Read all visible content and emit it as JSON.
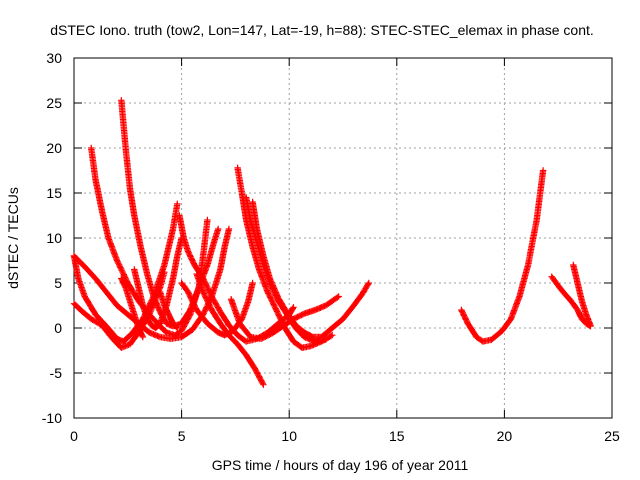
{
  "chart_data": {
    "type": "scatter",
    "title": "dSTEC Iono. truth (tow2, Lon=147, Lat=-19, h=88): STEC-STEC_elemax in phase cont.",
    "xlabel": "GPS time / hours of day 196 of year 2011",
    "ylabel": "dSTEC  / TECUs",
    "xlim": [
      0,
      25
    ],
    "ylim": [
      -10,
      30
    ],
    "xticks": [
      "0",
      "5",
      "10",
      "15",
      "20",
      "25"
    ],
    "yticks": [
      "-10",
      "-5",
      "0",
      "5",
      "10",
      "15",
      "20",
      "25",
      "30"
    ],
    "grid": true,
    "marker": "+",
    "series_color": "#ff0000",
    "series": [
      {
        "points": [
          [
            0.0,
            8.0
          ],
          [
            0.2,
            5.5
          ],
          [
            0.5,
            3.5
          ],
          [
            1.0,
            1.5
          ],
          [
            1.5,
            0.2
          ],
          [
            2.0,
            -1.2
          ],
          [
            2.3,
            -1.5
          ],
          [
            2.7,
            -0.6
          ],
          [
            3.2,
            1.0
          ],
          [
            3.7,
            3.5
          ],
          [
            4.2,
            7.0
          ],
          [
            4.6,
            11.0
          ],
          [
            4.8,
            13.8
          ]
        ]
      },
      {
        "points": [
          [
            0.0,
            2.7
          ],
          [
            0.4,
            1.8
          ],
          [
            0.8,
            1.0
          ],
          [
            1.3,
            0.3
          ],
          [
            1.8,
            -1.2
          ],
          [
            2.2,
            -2.2
          ],
          [
            2.6,
            -1.8
          ],
          [
            3.0,
            -0.5
          ],
          [
            3.5,
            1.5
          ],
          [
            4.0,
            4.5
          ],
          [
            4.2,
            6.2
          ]
        ]
      },
      {
        "points": [
          [
            0.0,
            8.0
          ],
          [
            0.5,
            6.8
          ],
          [
            1.0,
            5.5
          ],
          [
            1.5,
            4.0
          ],
          [
            2.0,
            2.5
          ],
          [
            2.5,
            1.5
          ],
          [
            3.0,
            0.5
          ],
          [
            3.5,
            -0.5
          ],
          [
            4.0,
            -1.0
          ],
          [
            4.5,
            -1.2
          ],
          [
            5.0,
            -1.0
          ],
          [
            5.5,
            -0.2
          ],
          [
            6.0,
            1.5
          ],
          [
            6.4,
            3.5
          ],
          [
            6.8,
            6.5
          ],
          [
            7.0,
            9.0
          ],
          [
            7.2,
            11.0
          ]
        ]
      },
      {
        "points": [
          [
            0.8,
            20.0
          ],
          [
            1.0,
            16.5
          ],
          [
            1.3,
            13.0
          ],
          [
            1.6,
            10.0
          ],
          [
            2.0,
            7.5
          ],
          [
            2.5,
            5.0
          ],
          [
            3.0,
            3.0
          ],
          [
            3.5,
            1.5
          ],
          [
            4.0,
            0.2
          ],
          [
            4.3,
            -0.5
          ],
          [
            4.7,
            -0.8
          ],
          [
            5.0,
            -0.3
          ],
          [
            5.4,
            1.5
          ],
          [
            5.8,
            4.5
          ],
          [
            6.0,
            8.0
          ],
          [
            6.2,
            12.0
          ]
        ]
      },
      {
        "points": [
          [
            2.2,
            25.3
          ],
          [
            2.4,
            20.0
          ],
          [
            2.6,
            15.5
          ],
          [
            2.8,
            12.5
          ],
          [
            3.1,
            9.0
          ],
          [
            3.4,
            6.0
          ],
          [
            3.7,
            3.5
          ],
          [
            4.0,
            1.8
          ],
          [
            4.3,
            0.5
          ],
          [
            4.6,
            0.2
          ],
          [
            5.0,
            0.5
          ],
          [
            5.4,
            2.0
          ],
          [
            5.8,
            4.5
          ],
          [
            6.2,
            7.0
          ],
          [
            6.5,
            9.5
          ],
          [
            6.7,
            11.0
          ]
        ]
      },
      {
        "points": [
          [
            2.2,
            5.5
          ],
          [
            2.4,
            4.5
          ],
          [
            2.6,
            3.0
          ],
          [
            2.8,
            1.5
          ],
          [
            3.0,
            0.0
          ],
          [
            3.2,
            -1.0
          ]
        ]
      },
      {
        "points": [
          [
            2.8,
            6.5
          ],
          [
            3.0,
            4.5
          ],
          [
            3.2,
            2.5
          ],
          [
            3.4,
            1.0
          ],
          [
            3.6,
            0.3
          ],
          [
            3.8,
            0.0
          ],
          [
            4.0,
            0.5
          ],
          [
            4.3,
            2.5
          ],
          [
            4.6,
            5.5
          ],
          [
            4.8,
            8.0
          ],
          [
            5.0,
            10.0
          ]
        ]
      },
      {
        "points": [
          [
            4.0,
            4.0
          ],
          [
            4.2,
            2.5
          ],
          [
            4.4,
            1.5
          ],
          [
            4.6,
            0.5
          ],
          [
            4.8,
            0.0
          ]
        ]
      },
      {
        "points": [
          [
            4.9,
            12.5
          ],
          [
            5.1,
            10.0
          ],
          [
            5.3,
            8.5
          ],
          [
            5.6,
            7.0
          ],
          [
            6.0,
            5.5
          ],
          [
            6.4,
            3.5
          ],
          [
            6.8,
            1.8
          ],
          [
            7.2,
            0.3
          ],
          [
            7.6,
            -0.8
          ],
          [
            8.0,
            -1.5
          ],
          [
            8.5,
            -1.2
          ],
          [
            9.0,
            -0.5
          ],
          [
            9.5,
            0.5
          ],
          [
            10.0,
            1.5
          ],
          [
            10.2,
            2.3
          ]
        ]
      },
      {
        "points": [
          [
            5.0,
            5.0
          ],
          [
            5.3,
            4.0
          ],
          [
            5.7,
            2.0
          ],
          [
            6.2,
            0.5
          ],
          [
            6.7,
            -0.5
          ],
          [
            7.0,
            -0.8
          ],
          [
            7.4,
            -0.3
          ],
          [
            7.8,
            1.0
          ],
          [
            8.1,
            3.0
          ],
          [
            8.3,
            5.0
          ]
        ]
      },
      {
        "points": [
          [
            5.7,
            6.0
          ],
          [
            6.0,
            4.0
          ],
          [
            6.4,
            2.0
          ],
          [
            6.8,
            0.5
          ],
          [
            7.2,
            -0.8
          ],
          [
            7.6,
            -1.8
          ],
          [
            8.0,
            -3.0
          ],
          [
            8.4,
            -4.5
          ],
          [
            8.8,
            -6.3
          ]
        ]
      },
      {
        "points": [
          [
            7.6,
            17.8
          ],
          [
            7.8,
            15.0
          ],
          [
            8.0,
            12.0
          ],
          [
            8.3,
            9.0
          ],
          [
            8.6,
            6.5
          ],
          [
            9.0,
            4.0
          ],
          [
            9.4,
            2.0
          ],
          [
            9.8,
            0.0
          ],
          [
            10.2,
            -1.5
          ],
          [
            10.6,
            -2.2
          ],
          [
            11.0,
            -2.0
          ],
          [
            11.5,
            -1.5
          ],
          [
            12.0,
            -0.8
          ]
        ]
      },
      {
        "points": [
          [
            8.0,
            14.5
          ],
          [
            8.2,
            12.0
          ],
          [
            8.5,
            9.5
          ],
          [
            8.8,
            7.0
          ],
          [
            9.1,
            5.0
          ],
          [
            9.5,
            3.0
          ],
          [
            9.9,
            1.5
          ],
          [
            10.3,
            0.0
          ],
          [
            10.7,
            -1.0
          ],
          [
            11.2,
            -1.5
          ],
          [
            11.7,
            -1.3
          ]
        ]
      },
      {
        "points": [
          [
            8.3,
            14.0
          ],
          [
            8.5,
            11.0
          ],
          [
            8.8,
            8.0
          ],
          [
            9.1,
            5.5
          ],
          [
            9.5,
            3.3
          ],
          [
            9.9,
            1.7
          ],
          [
            10.3,
            0.3
          ],
          [
            10.7,
            -0.5
          ],
          [
            11.1,
            -1.0
          ],
          [
            11.5,
            -1.0
          ],
          [
            12.0,
            0.0
          ],
          [
            12.5,
            1.0
          ],
          [
            13.0,
            2.5
          ],
          [
            13.4,
            3.8
          ],
          [
            13.7,
            5.0
          ]
        ]
      },
      {
        "points": [
          [
            7.3,
            3.2
          ],
          [
            7.7,
            0.5
          ],
          [
            8.2,
            -1.0
          ],
          [
            8.7,
            -1.2
          ],
          [
            9.2,
            -0.6
          ],
          [
            9.7,
            0.2
          ],
          [
            10.2,
            1.0
          ],
          [
            10.7,
            1.6
          ],
          [
            11.2,
            2.0
          ],
          [
            11.7,
            2.5
          ],
          [
            12.3,
            3.5
          ]
        ]
      },
      {
        "points": [
          [
            18.0,
            2.0
          ],
          [
            18.3,
            0.5
          ],
          [
            18.7,
            -1.0
          ],
          [
            19.0,
            -1.5
          ],
          [
            19.4,
            -1.3
          ],
          [
            19.9,
            -0.3
          ],
          [
            20.3,
            1.0
          ],
          [
            20.7,
            3.5
          ],
          [
            21.1,
            7.0
          ],
          [
            21.5,
            12.0
          ],
          [
            21.8,
            17.5
          ]
        ]
      },
      {
        "points": [
          [
            22.2,
            5.7
          ],
          [
            22.5,
            4.7
          ],
          [
            22.8,
            3.8
          ],
          [
            23.1,
            3.0
          ],
          [
            23.4,
            2.0
          ],
          [
            23.6,
            1.0
          ],
          [
            23.8,
            0.5
          ],
          [
            24.0,
            0.2
          ]
        ]
      },
      {
        "points": [
          [
            23.2,
            7.0
          ],
          [
            23.4,
            5.0
          ],
          [
            23.6,
            3.0
          ],
          [
            23.8,
            1.5
          ],
          [
            24.0,
            0.3
          ]
        ]
      }
    ]
  }
}
